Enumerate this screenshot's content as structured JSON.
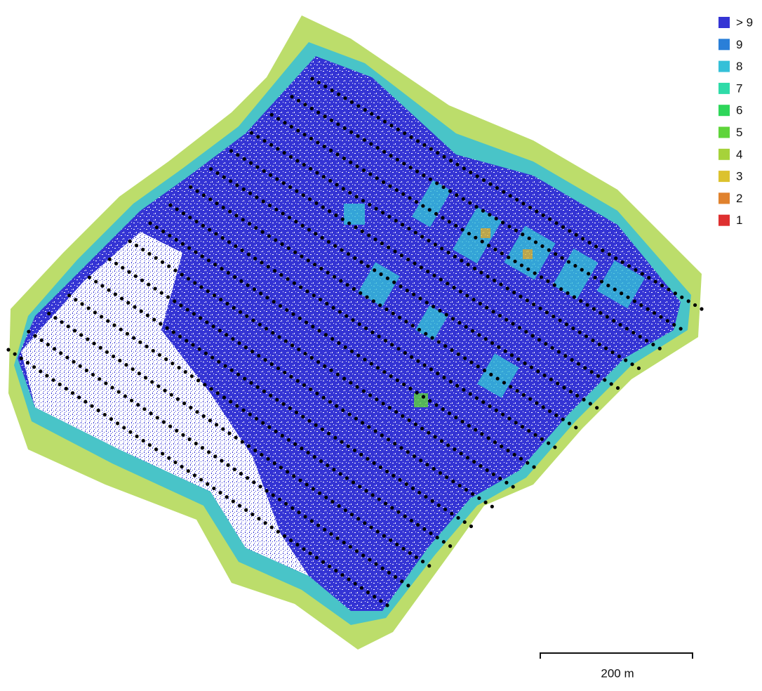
{
  "legend": {
    "items": [
      {
        "label": "> 9",
        "color": "#3434d4"
      },
      {
        "label": "9",
        "color": "#2a7fd8"
      },
      {
        "label": "8",
        "color": "#35c0d8"
      },
      {
        "label": "7",
        "color": "#2fdba8"
      },
      {
        "label": "6",
        "color": "#2ed65a"
      },
      {
        "label": "5",
        "color": "#5ed43a"
      },
      {
        "label": "4",
        "color": "#a6d23a"
      },
      {
        "label": "3",
        "color": "#dcc22e"
      },
      {
        "label": "2",
        "color": "#e0822e"
      },
      {
        "label": "1",
        "color": "#de3030"
      }
    ]
  },
  "scale_bar": {
    "label": "200 m"
  }
}
